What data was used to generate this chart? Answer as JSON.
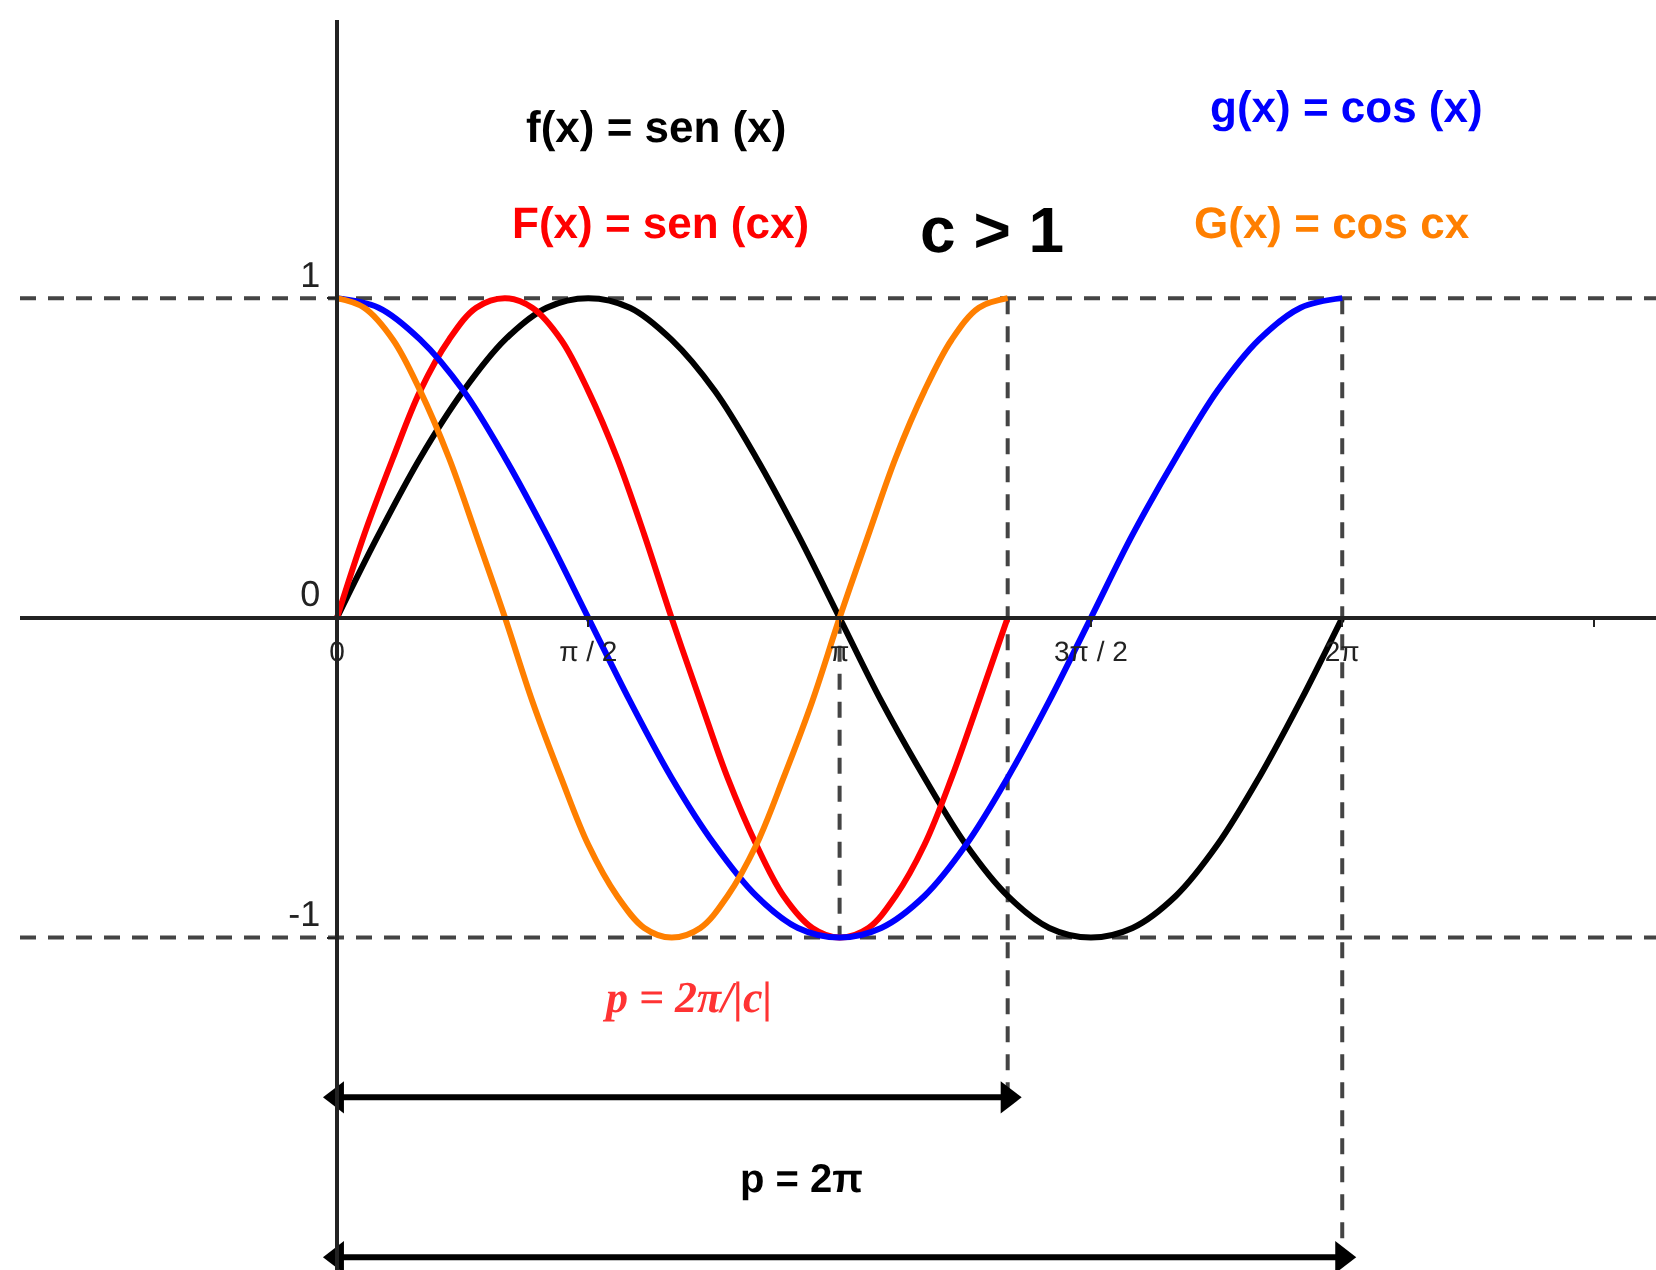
{
  "chart_data": {
    "type": "line",
    "xlim": [
      -1.98,
      8.24
    ],
    "ylim": [
      -2.04,
      1.87
    ],
    "xticks": [
      0,
      {
        "value": 1.57,
        "label": "π / 2"
      },
      {
        "value": 3.14,
        "label": "π"
      },
      {
        "value": 4.71,
        "label": "3π / 2"
      },
      {
        "value": 6.28,
        "label": "2π"
      },
      {
        "value": 7.85,
        "label": null
      }
    ],
    "yticks": [
      -1,
      0,
      1
    ],
    "legend": false,
    "ref_lines": [
      {
        "axis": "y",
        "value": 1,
        "color": "#444444",
        "line_style": "dashed"
      },
      {
        "axis": "y",
        "value": -1,
        "color": "#444444",
        "line_style": "dashed"
      }
    ],
    "series": [
      {
        "color": "#444444",
        "line_style": "dashed",
        "x": [
          3.14,
          3.14
        ],
        "values": [
          0,
          -1
        ]
      },
      {
        "color": "#444444",
        "line_style": "dashed",
        "x": [
          4.19,
          4.19
        ],
        "values": [
          1,
          -1.5
        ]
      },
      {
        "color": "#444444",
        "line_style": "dashed",
        "x": [
          6.28,
          6.28
        ],
        "values": [
          1,
          -2
        ]
      },
      {
        "name": "f(x) = sen (x)",
        "color": "#000000",
        "x": [
          0,
          0.26,
          0.52,
          0.79,
          1.05,
          1.31,
          1.57,
          1.83,
          2.09,
          2.36,
          2.62,
          2.88,
          3.14,
          3.4,
          3.67,
          3.93,
          4.19,
          4.45,
          4.71,
          4.97,
          5.24,
          5.5,
          5.76,
          6.02,
          6.28
        ],
        "values": [
          0,
          0.26,
          0.5,
          0.71,
          0.87,
          0.97,
          1,
          0.97,
          0.87,
          0.71,
          0.5,
          0.26,
          0,
          -0.26,
          -0.5,
          -0.71,
          -0.87,
          -0.97,
          -1,
          -0.97,
          -0.87,
          -0.71,
          -0.5,
          -0.26,
          0
        ]
      },
      {
        "name": "F(x) = sen (cx)",
        "color": "#ff0000",
        "x": [
          0,
          0.17,
          0.35,
          0.52,
          0.7,
          0.87,
          1.05,
          1.22,
          1.4,
          1.57,
          1.75,
          1.92,
          2.09,
          2.27,
          2.44,
          2.62,
          2.79,
          2.97,
          3.14,
          3.32,
          3.49,
          3.67,
          3.84,
          4.01,
          4.19
        ],
        "values": [
          0,
          0.26,
          0.5,
          0.71,
          0.87,
          0.97,
          1,
          0.97,
          0.87,
          0.71,
          0.5,
          0.26,
          0,
          -0.26,
          -0.5,
          -0.71,
          -0.87,
          -0.97,
          -1,
          -0.97,
          -0.87,
          -0.71,
          -0.5,
          -0.26,
          0
        ]
      },
      {
        "name": "g(x) = cos (x)",
        "color": "#0000ff",
        "x": [
          0,
          0.26,
          0.52,
          0.79,
          1.05,
          1.31,
          1.57,
          1.83,
          2.09,
          2.36,
          2.62,
          2.88,
          3.14,
          3.4,
          3.67,
          3.93,
          4.19,
          4.45,
          4.71,
          4.97,
          5.24,
          5.5,
          5.76,
          6.02,
          6.28
        ],
        "values": [
          1,
          0.97,
          0.87,
          0.71,
          0.5,
          0.26,
          0,
          -0.26,
          -0.5,
          -0.71,
          -0.87,
          -0.97,
          -1,
          -0.97,
          -0.87,
          -0.71,
          -0.5,
          -0.26,
          0,
          0.26,
          0.5,
          0.71,
          0.87,
          0.97,
          1
        ]
      },
      {
        "name": "G(x) = cos cx",
        "color": "#ff7f00",
        "x": [
          0,
          0.17,
          0.35,
          0.52,
          0.7,
          0.87,
          1.05,
          1.22,
          1.4,
          1.57,
          1.75,
          1.92,
          2.09,
          2.27,
          2.44,
          2.62,
          2.79,
          2.97,
          3.14,
          3.32,
          3.49,
          3.67,
          3.84,
          4.01,
          4.19
        ],
        "values": [
          1,
          0.97,
          0.87,
          0.71,
          0.5,
          0.26,
          0,
          -0.26,
          -0.5,
          -0.71,
          -0.87,
          -0.97,
          -1,
          -0.97,
          -0.87,
          -0.71,
          -0.5,
          -0.26,
          0,
          0.26,
          0.5,
          0.71,
          0.87,
          0.97,
          1
        ]
      },
      {
        "color": "#000000",
        "marker": "triangle",
        "x": [
          0,
          4.19
        ],
        "values": [
          -1.5,
          -1.5
        ]
      },
      {
        "color": "#000000",
        "marker": "triangle",
        "x": [
          0,
          6.28
        ],
        "values": [
          -2,
          -2
        ]
      }
    ],
    "annotations": [
      "c > 1",
      "p = 2π/|c|",
      "p = 2π"
    ]
  }
}
